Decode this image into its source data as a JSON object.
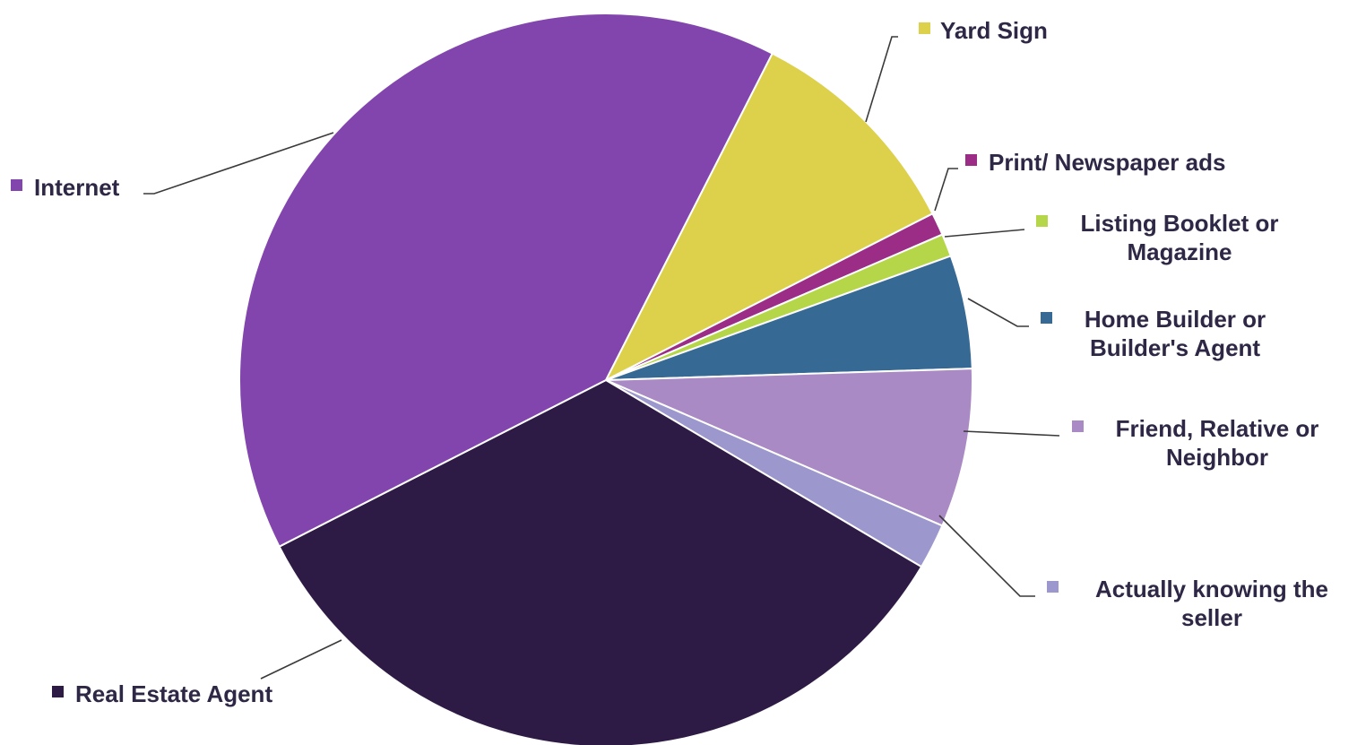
{
  "chart_data": {
    "type": "pie",
    "title": "",
    "unit": "%",
    "start_angle_deg": 27,
    "direction": "clockwise",
    "legend": "labels beside slices",
    "slices": [
      {
        "label": "Yard Sign",
        "value": 10,
        "color": "#ddd04a"
      },
      {
        "label": "Print/ Newspaper ads",
        "value": 1,
        "color": "#9b2d86"
      },
      {
        "label": "Listing Booklet or Magazine",
        "value": 1,
        "color": "#b6d64a"
      },
      {
        "label": "Home Builder or Builder's Agent",
        "value": 5,
        "color": "#366994"
      },
      {
        "label": "Friend, Relative or Neighbor",
        "value": 7,
        "color": "#a98ac4"
      },
      {
        "label": "Actually knowing the seller",
        "value": 2,
        "color": "#9c97cc"
      },
      {
        "label": "Real Estate Agent",
        "value": 34,
        "color": "#2e1b45"
      },
      {
        "label": "Internet",
        "value": 40,
        "color": "#8244ad"
      }
    ]
  }
}
